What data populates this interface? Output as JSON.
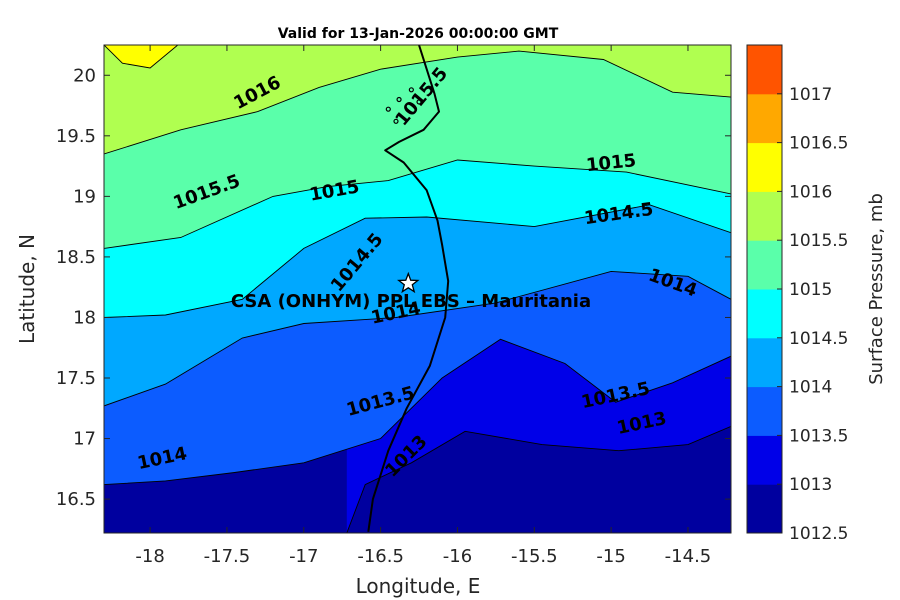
{
  "chart_data": {
    "type": "heatmap",
    "subtype": "filled-contour-map",
    "title": "Valid for 13-Jan-2026 00:00:00 GMT",
    "xlabel": "Longitude, E",
    "ylabel": "Latitude, N",
    "xlim": [
      -18.3,
      -14.22
    ],
    "ylim": [
      16.22,
      20.25
    ],
    "xticks": [
      -18,
      -17.5,
      -17,
      -16.5,
      -16,
      -15.5,
      -15,
      -14.5
    ],
    "yticks": [
      16.5,
      17,
      17.5,
      18,
      18.5,
      19,
      19.5,
      20
    ],
    "xtick_labels": [
      "-18",
      "-17.5",
      "-17",
      "-16.5",
      "-16",
      "-15.5",
      "-15",
      "-14.5"
    ],
    "ytick_labels": [
      "16.5",
      "17",
      "17.5",
      "18",
      "18.5",
      "19",
      "19.5",
      "20"
    ],
    "colorbar": {
      "label": "Surface Pressure, mb",
      "levels": [
        1012.5,
        1013,
        1013.5,
        1014,
        1014.5,
        1015,
        1015.5,
        1016,
        1016.5,
        1017
      ],
      "tick_labels": [
        "1012.5",
        "1013",
        "1013.5",
        "1014",
        "1014.5",
        "1015",
        "1015.5",
        "1016",
        "1016.5",
        "1017"
      ],
      "colors": [
        "#00009f",
        "#0000e8",
        "#0c5cff",
        "#00a8ff",
        "#00ffff",
        "#5affaa",
        "#b0ff50",
        "#ffff00",
        "#ffa800",
        "#ff5400"
      ]
    },
    "contours": [
      {
        "level": 1013,
        "points": [
          [
            -16.72,
            16.22
          ],
          [
            -16.6,
            16.62
          ],
          [
            -16.3,
            16.8
          ],
          [
            -15.95,
            17.06
          ],
          [
            -15.45,
            16.95
          ],
          [
            -14.95,
            16.9
          ],
          [
            -14.5,
            16.95
          ],
          [
            -14.22,
            17.1
          ]
        ]
      },
      {
        "level": 1013.5,
        "points": [
          [
            -18.3,
            16.62
          ],
          [
            -17.9,
            16.65
          ],
          [
            -17.45,
            16.72
          ],
          [
            -17.0,
            16.8
          ],
          [
            -16.5,
            17.0
          ],
          [
            -16.1,
            17.5
          ],
          [
            -15.72,
            17.82
          ],
          [
            -15.3,
            17.62
          ],
          [
            -14.97,
            17.3
          ],
          [
            -14.6,
            17.46
          ],
          [
            -14.22,
            17.68
          ]
        ]
      },
      {
        "level": 1014,
        "points": [
          [
            -18.3,
            17.27
          ],
          [
            -17.9,
            17.45
          ],
          [
            -17.4,
            17.83
          ],
          [
            -17.0,
            17.95
          ],
          [
            -16.4,
            18.0
          ],
          [
            -15.75,
            18.12
          ],
          [
            -15.0,
            18.38
          ],
          [
            -14.5,
            18.34
          ],
          [
            -14.22,
            18.15
          ]
        ]
      },
      {
        "level": 1014.5,
        "points": [
          [
            -18.3,
            18.0
          ],
          [
            -17.9,
            18.02
          ],
          [
            -17.4,
            18.15
          ],
          [
            -17.0,
            18.57
          ],
          [
            -16.6,
            18.82
          ],
          [
            -16.2,
            18.83
          ],
          [
            -15.5,
            18.75
          ],
          [
            -14.75,
            18.93
          ],
          [
            -14.22,
            18.7
          ]
        ]
      },
      {
        "level": 1015,
        "points": [
          [
            -18.3,
            18.57
          ],
          [
            -17.8,
            18.66
          ],
          [
            -17.2,
            19.0
          ],
          [
            -16.85,
            19.08
          ],
          [
            -16.45,
            19.13
          ],
          [
            -16.0,
            19.3
          ],
          [
            -15.5,
            19.25
          ],
          [
            -14.9,
            19.2
          ],
          [
            -14.22,
            19.02
          ]
        ]
      },
      {
        "level": 1015.5,
        "points": [
          [
            -18.3,
            19.35
          ],
          [
            -17.8,
            19.55
          ],
          [
            -17.3,
            19.7
          ],
          [
            -16.9,
            19.9
          ],
          [
            -16.5,
            20.05
          ],
          [
            -16.0,
            20.15
          ],
          [
            -15.6,
            20.2
          ],
          [
            -15.05,
            20.13
          ],
          [
            -14.6,
            19.86
          ],
          [
            -14.22,
            19.82
          ]
        ]
      },
      {
        "level": 1016,
        "points": [
          [
            -18.3,
            20.25
          ],
          [
            -18.18,
            20.1
          ],
          [
            -18.0,
            20.06
          ],
          [
            -17.82,
            20.25
          ]
        ]
      }
    ],
    "contour_labels": [
      {
        "text": "1016",
        "x": -17.3,
        "y": 19.85,
        "angle": -28
      },
      {
        "text": "1015.5",
        "x": -17.63,
        "y": 19.03,
        "angle": -20
      },
      {
        "text": "1015",
        "x": -16.8,
        "y": 19.04,
        "angle": -10
      },
      {
        "text": "1015.5",
        "x": -16.23,
        "y": 19.82,
        "angle": -50
      },
      {
        "text": "1015",
        "x": -15.0,
        "y": 19.27,
        "angle": -6
      },
      {
        "text": "1014.5",
        "x": -14.95,
        "y": 18.85,
        "angle": -8
      },
      {
        "text": "1014.5",
        "x": -16.65,
        "y": 18.45,
        "angle": -50
      },
      {
        "text": "1014",
        "x": -14.6,
        "y": 18.28,
        "angle": 20
      },
      {
        "text": "1014",
        "x": -16.4,
        "y": 18.03,
        "angle": -12
      },
      {
        "text": "1014",
        "x": -17.92,
        "y": 16.83,
        "angle": -12
      },
      {
        "text": "1013.5",
        "x": -16.5,
        "y": 17.3,
        "angle": -15
      },
      {
        "text": "1013.5",
        "x": -14.97,
        "y": 17.35,
        "angle": -12
      },
      {
        "text": "1013",
        "x": -14.8,
        "y": 17.12,
        "angle": -12
      },
      {
        "text": "1013",
        "x": -16.33,
        "y": 16.85,
        "angle": -45
      }
    ],
    "coastline": [
      [
        -16.58,
        16.23
      ],
      [
        -16.55,
        16.5
      ],
      [
        -16.45,
        16.9
      ],
      [
        -16.33,
        17.25
      ],
      [
        -16.18,
        17.6
      ],
      [
        -16.08,
        18.0
      ],
      [
        -16.06,
        18.3
      ],
      [
        -16.1,
        18.6
      ],
      [
        -16.13,
        18.8
      ],
      [
        -16.2,
        19.05
      ],
      [
        -16.35,
        19.28
      ],
      [
        -16.47,
        19.38
      ],
      [
        -16.38,
        19.45
      ],
      [
        -16.22,
        19.55
      ],
      [
        -16.12,
        19.7
      ],
      [
        -16.15,
        19.85
      ],
      [
        -16.2,
        20.05
      ],
      [
        -16.25,
        20.25
      ]
    ],
    "site": {
      "name": "CSA (ONHYM) PPL EBS  – Mauritania",
      "lon": -16.32,
      "lat": 18.28
    }
  }
}
